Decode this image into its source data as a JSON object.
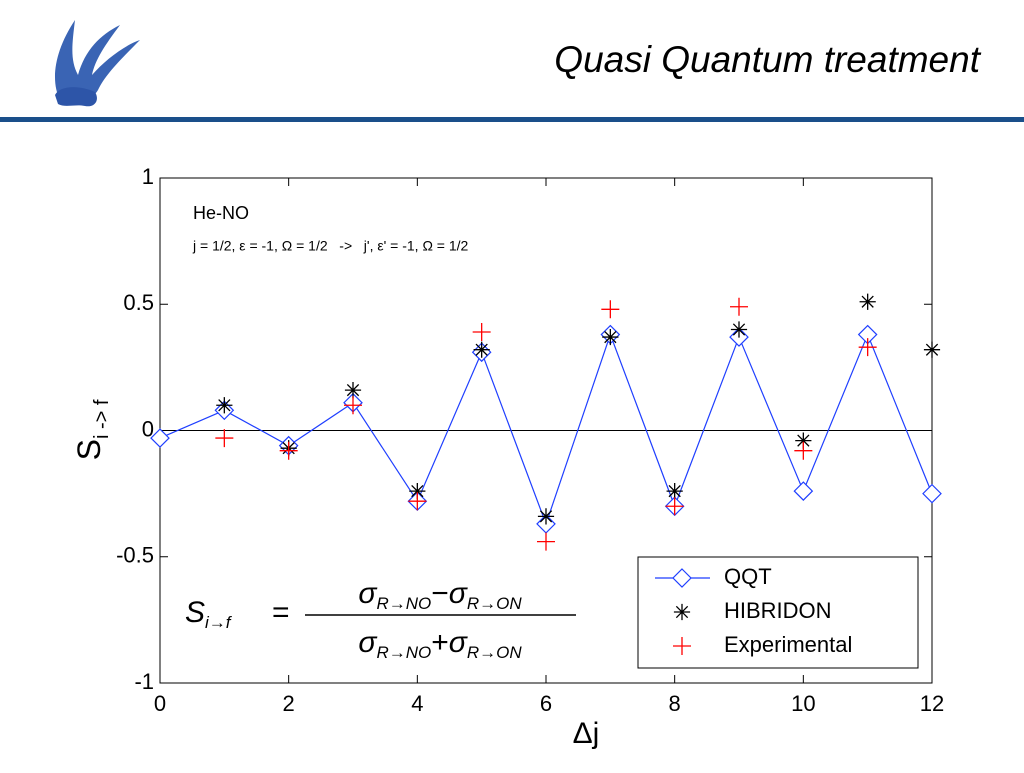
{
  "title": "Quasi Quantum treatment",
  "chart_data": {
    "type": "line",
    "system_label": "He-NO",
    "transition_label": "j = 1/2, ε = -1, Ω = 1/2   ->   j', ε' = -1, Ω = 1/2",
    "xlabel": "Δj",
    "ylabel": "S",
    "ylabel_sub": "i -> f",
    "formula": {
      "lhs": "S",
      "lhs_sub": "i→f",
      "eq": "=",
      "sigma": "σ",
      "sub_no": "R→NO",
      "sub_on": "R→ON",
      "minus": "−",
      "plus": "+"
    },
    "x": [
      0,
      1,
      2,
      3,
      4,
      5,
      6,
      7,
      8,
      9,
      10,
      11,
      12
    ],
    "series": [
      {
        "name": "QQT",
        "color": "#1f3fff",
        "marker": "diamond",
        "line": true,
        "values": [
          -0.03,
          0.08,
          -0.06,
          0.11,
          -0.28,
          0.31,
          -0.37,
          0.38,
          -0.3,
          0.37,
          -0.24,
          0.38,
          -0.25
        ]
      },
      {
        "name": "HIBRIDON",
        "color": "#000000",
        "marker": "star",
        "line": false,
        "values": [
          null,
          0.1,
          -0.07,
          0.16,
          -0.24,
          0.32,
          -0.34,
          0.37,
          -0.24,
          0.4,
          -0.04,
          0.51,
          0.32
        ]
      },
      {
        "name": "Experimental",
        "color": "#ff0000",
        "marker": "plus",
        "line": false,
        "values": [
          null,
          -0.03,
          -0.08,
          0.1,
          -0.28,
          0.39,
          -0.44,
          0.48,
          -0.3,
          0.49,
          -0.08,
          0.33,
          null
        ]
      }
    ],
    "xlim": [
      0,
      12
    ],
    "xticks": [
      0,
      2,
      4,
      6,
      8,
      10,
      12
    ],
    "ylim": [
      -1,
      1
    ],
    "yticks": [
      -1,
      -0.5,
      0,
      0.5,
      1
    ],
    "zero_line": true,
    "legend": "lower right"
  }
}
